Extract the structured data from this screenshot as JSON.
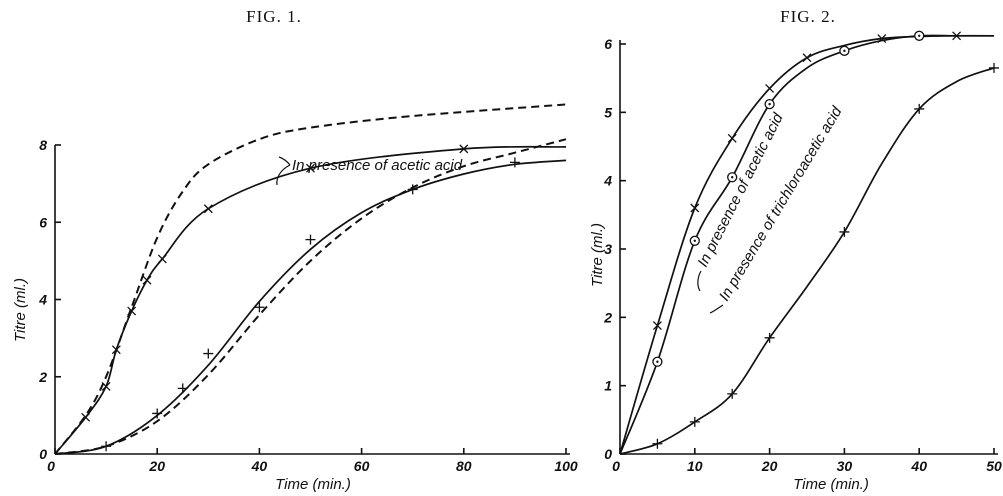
{
  "chart_data": [
    {
      "type": "line",
      "title": "FIG. 1.",
      "xlabel": "Time (min.)",
      "ylabel": "Titre (ml.)",
      "xlim": [
        0,
        100
      ],
      "ylim": [
        0,
        9
      ],
      "xticks": [
        0,
        20,
        40,
        60,
        80,
        100
      ],
      "yticks": [
        0,
        2,
        4,
        6,
        8
      ],
      "grid": false,
      "annotations": [
        {
          "text": "In presence of acetic acid"
        }
      ],
      "series": [
        {
          "style": "solid",
          "marker": "x",
          "points": [
            [
              6,
              0.95
            ],
            [
              10,
              1.75
            ],
            [
              12,
              2.7
            ],
            [
              15,
              3.7
            ],
            [
              18,
              4.5
            ],
            [
              21,
              5.05
            ],
            [
              30,
              6.35
            ],
            [
              50,
              7.4
            ],
            [
              80,
              7.9
            ]
          ],
          "curve": [
            [
              0,
              0
            ],
            [
              6,
              0.95
            ],
            [
              10,
              1.75
            ],
            [
              12,
              2.7
            ],
            [
              15,
              3.7
            ],
            [
              18,
              4.5
            ],
            [
              21,
              5.05
            ],
            [
              30,
              6.35
            ],
            [
              50,
              7.4
            ],
            [
              80,
              7.9
            ],
            [
              100,
              7.95
            ]
          ]
        },
        {
          "style": "solid",
          "marker": "+",
          "points": [
            [
              10,
              0.2
            ],
            [
              20,
              1.05
            ],
            [
              25,
              1.7
            ],
            [
              30,
              2.6
            ],
            [
              40,
              3.8
            ],
            [
              50,
              5.55
            ],
            [
              70,
              6.85
            ],
            [
              90,
              7.55
            ]
          ],
          "curve": [
            [
              0,
              0
            ],
            [
              10,
              0.2
            ],
            [
              20,
              1.0
            ],
            [
              30,
              2.3
            ],
            [
              40,
              3.95
            ],
            [
              50,
              5.3
            ],
            [
              60,
              6.25
            ],
            [
              70,
              6.85
            ],
            [
              80,
              7.25
            ],
            [
              90,
              7.5
            ],
            [
              100,
              7.6
            ]
          ]
        },
        {
          "style": "dashed",
          "marker": "none",
          "curve": [
            [
              0,
              0
            ],
            [
              6,
              1.0
            ],
            [
              10,
              2.0
            ],
            [
              15,
              3.8
            ],
            [
              20,
              5.6
            ],
            [
              25,
              6.8
            ],
            [
              30,
              7.5
            ],
            [
              40,
              8.15
            ],
            [
              50,
              8.45
            ],
            [
              70,
              8.75
            ],
            [
              100,
              9.05
            ]
          ]
        },
        {
          "style": "dashed",
          "marker": "none",
          "curve": [
            [
              0,
              0
            ],
            [
              10,
              0.2
            ],
            [
              20,
              0.85
            ],
            [
              30,
              2.05
            ],
            [
              40,
              3.6
            ],
            [
              50,
              5.0
            ],
            [
              60,
              6.1
            ],
            [
              70,
              6.9
            ],
            [
              80,
              7.45
            ],
            [
              90,
              7.8
            ],
            [
              100,
              8.15
            ]
          ]
        }
      ]
    },
    {
      "type": "line",
      "title": "FIG. 2.",
      "xlabel": "Time (min.)",
      "ylabel": "Titre (ml.)",
      "xlim": [
        0,
        50
      ],
      "ylim": [
        0,
        6.2
      ],
      "xticks": [
        0,
        10,
        20,
        30,
        40,
        50
      ],
      "yticks": [
        0,
        1,
        2,
        3,
        4,
        5,
        6
      ],
      "grid": false,
      "annotations": [
        {
          "text": "In presence of acetic acid"
        },
        {
          "text": "In presence of trichloroacetic acid"
        }
      ],
      "series": [
        {
          "style": "solid",
          "marker": "x",
          "points": [
            [
              5,
              1.88
            ],
            [
              10,
              3.6
            ],
            [
              15,
              4.62
            ],
            [
              20,
              5.35
            ],
            [
              25,
              5.8
            ],
            [
              35,
              6.08
            ],
            [
              45,
              6.12
            ]
          ],
          "curve": [
            [
              0,
              0
            ],
            [
              5,
              1.88
            ],
            [
              10,
              3.6
            ],
            [
              15,
              4.62
            ],
            [
              20,
              5.35
            ],
            [
              25,
              5.8
            ],
            [
              30,
              5.98
            ],
            [
              35,
              6.08
            ],
            [
              40,
              6.11
            ],
            [
              45,
              6.12
            ],
            [
              50,
              6.12
            ]
          ]
        },
        {
          "style": "solid",
          "marker": "circle",
          "points": [
            [
              5,
              1.35
            ],
            [
              10,
              3.12
            ],
            [
              15,
              4.05
            ],
            [
              20,
              5.12
            ],
            [
              30,
              5.9
            ],
            [
              40,
              6.12
            ]
          ],
          "curve": [
            [
              0,
              0
            ],
            [
              5,
              1.35
            ],
            [
              10,
              3.12
            ],
            [
              15,
              4.05
            ],
            [
              20,
              5.12
            ],
            [
              25,
              5.65
            ],
            [
              30,
              5.9
            ],
            [
              35,
              6.05
            ],
            [
              40,
              6.12
            ],
            [
              45,
              6.12
            ],
            [
              50,
              6.12
            ]
          ]
        },
        {
          "style": "solid",
          "marker": "+",
          "points": [
            [
              5,
              0.15
            ],
            [
              10,
              0.47
            ],
            [
              15,
              0.88
            ],
            [
              20,
              1.7
            ],
            [
              30,
              3.25
            ],
            [
              40,
              5.05
            ],
            [
              50,
              5.65
            ]
          ],
          "curve": [
            [
              0,
              0
            ],
            [
              5,
              0.15
            ],
            [
              10,
              0.47
            ],
            [
              15,
              0.88
            ],
            [
              20,
              1.7
            ],
            [
              25,
              2.45
            ],
            [
              30,
              3.25
            ],
            [
              35,
              4.25
            ],
            [
              40,
              5.05
            ],
            [
              45,
              5.45
            ],
            [
              50,
              5.65
            ]
          ]
        }
      ]
    }
  ]
}
